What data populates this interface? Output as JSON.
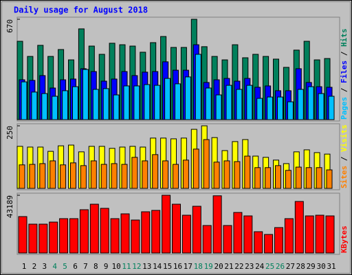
{
  "chart_data": [
    {
      "type": "bar",
      "title": "Daily usage for August 2018",
      "categories": [
        "1",
        "2",
        "3",
        "4",
        "5",
        "6",
        "7",
        "8",
        "9",
        "10",
        "11",
        "12",
        "13",
        "14",
        "15",
        "16",
        "17",
        "18",
        "19",
        "20",
        "21",
        "22",
        "23",
        "24",
        "25",
        "26",
        "27",
        "28",
        "29",
        "30",
        "31"
      ],
      "category_colors": [
        "#000000",
        "#000000",
        "#000000",
        "#00805c",
        "#00805c",
        "#000000",
        "#000000",
        "#000000",
        "#000000",
        "#000000",
        "#00805c",
        "#00805c",
        "#000000",
        "#000000",
        "#000000",
        "#000000",
        "#000000",
        "#00805c",
        "#00805c",
        "#000000",
        "#000000",
        "#000000",
        "#000000",
        "#000000",
        "#00805c",
        "#00805c",
        "#000000",
        "#000000",
        "#000000",
        "#000000",
        "#000000"
      ],
      "legend_separator": " / ",
      "ylim": [
        0,
        670
      ],
      "yticks": [
        670
      ],
      "series": [
        {
          "name": "Hits",
          "color": "#00805c",
          "values": [
            523,
            422,
            496,
            422,
            468,
            399,
            606,
            491,
            436,
            510,
            500,
            491,
            450,
            514,
            555,
            482,
            482,
            670,
            487,
            422,
            399,
            500,
            413,
            436,
            422,
            404,
            349,
            464,
            523,
            399,
            408
          ]
        },
        {
          "name": "Files",
          "color": "#0000ff",
          "values": [
            266,
            262,
            294,
            211,
            266,
            271,
            340,
            321,
            257,
            271,
            321,
            294,
            317,
            321,
            386,
            330,
            330,
            500,
            248,
            266,
            275,
            257,
            275,
            216,
            225,
            193,
            193,
            340,
            248,
            220,
            216
          ]
        },
        {
          "name": "Pages",
          "color": "#00c0ff",
          "values": [
            252,
            184,
            174,
            156,
            193,
            220,
            335,
            202,
            207,
            165,
            225,
            225,
            234,
            229,
            275,
            239,
            285,
            436,
            211,
            165,
            229,
            202,
            229,
            142,
            151,
            151,
            119,
            202,
            220,
            174,
            156
          ]
        }
      ]
    },
    {
      "type": "bar",
      "legend_separator": " / ",
      "ylim": [
        0,
        250
      ],
      "yticks": [
        250
      ],
      "series": [
        {
          "name": "Visits",
          "color": "#ffff00",
          "values": [
            168,
            165,
            165,
            148,
            170,
            173,
            146,
            168,
            168,
            160,
            165,
            168,
            165,
            201,
            201,
            198,
            201,
            236,
            250,
            203,
            151,
            187,
            195,
            129,
            124,
            113,
            99,
            146,
            154,
            143,
            137
          ]
        },
        {
          "name": "Sites",
          "color": "#ff8000",
          "values": [
            94,
            96,
            99,
            110,
            94,
            102,
            91,
            110,
            96,
            99,
            96,
            124,
            110,
            135,
            110,
            96,
            113,
            157,
            195,
            105,
            110,
            107,
            129,
            83,
            83,
            91,
            72,
            85,
            83,
            83,
            74
          ]
        }
      ]
    },
    {
      "type": "bar",
      "ylim": [
        0,
        43189
      ],
      "yticks": [
        43189
      ],
      "series": [
        {
          "name": "KBytes",
          "color": "#ff0000",
          "values": [
            27245,
            21590,
            21590,
            23132,
            25702,
            25702,
            32385,
            36497,
            33413,
            25702,
            29300,
            24675,
            30843,
            31871,
            43189,
            36497,
            28273,
            34955,
            20562,
            42800,
            20562,
            30329,
            27759,
            15936,
            13880,
            19020,
            25702,
            38553,
            27759,
            28273,
            27759
          ]
        }
      ]
    }
  ]
}
